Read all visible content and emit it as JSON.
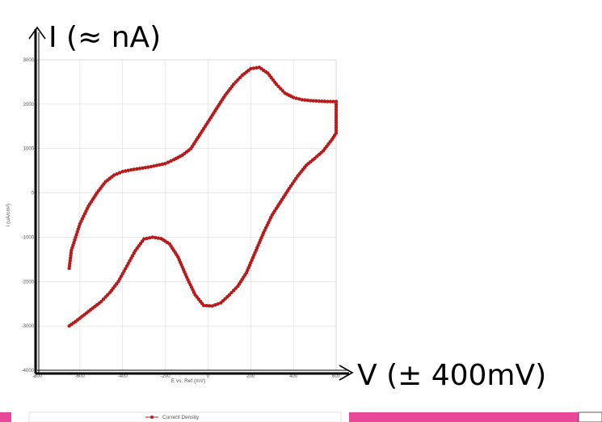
{
  "annotations": {
    "y_axis_label": "I (≈ nA)",
    "x_axis_label": "V (± 400mV)"
  },
  "colors": {
    "series": "#b71c1c",
    "pink_band": "#e8479a",
    "grid": "#dcdcdc"
  },
  "chart_data": {
    "type": "line",
    "title": "",
    "xlabel": "E vs. Ref (mV)",
    "ylabel": "i (uA/cm²)",
    "xlim": [
      -800,
      600
    ],
    "ylim": [
      -4000,
      3000
    ],
    "xticks": [
      "-800",
      "-600",
      "-400",
      "-200",
      "0",
      "200",
      "400",
      "600"
    ],
    "yticks": [
      "3000",
      "2000",
      "1000",
      "0",
      "-1000",
      "-2000",
      "-3000",
      "-4000"
    ],
    "grid": true,
    "legend": "bottom-center",
    "series": [
      {
        "name": "Current Density",
        "x": [
          -650,
          -640,
          -600,
          -560,
          -520,
          -480,
          -440,
          -400,
          -360,
          -320,
          -280,
          -240,
          -200,
          -160,
          -120,
          -80,
          -40,
          0,
          40,
          80,
          120,
          160,
          200,
          240,
          280,
          320,
          360,
          400,
          440,
          480,
          520,
          560,
          600,
          600,
          600,
          580,
          540,
          500,
          460,
          420,
          380,
          340,
          300,
          260,
          220,
          180,
          140,
          100,
          60,
          20,
          -20,
          -60,
          -100,
          -140,
          -180,
          -220,
          -260,
          -300,
          -340,
          -380,
          -420,
          -460,
          -500,
          -540,
          -580,
          -620,
          -650
        ],
        "y": [
          -1700,
          -1300,
          -700,
          -300,
          0,
          250,
          400,
          480,
          520,
          550,
          580,
          620,
          660,
          750,
          850,
          1000,
          1300,
          1600,
          1900,
          2200,
          2450,
          2650,
          2800,
          2830,
          2700,
          2450,
          2250,
          2150,
          2100,
          2080,
          2070,
          2060,
          2060,
          1700,
          1350,
          1200,
          950,
          780,
          620,
          380,
          100,
          -200,
          -500,
          -900,
          -1350,
          -1800,
          -2100,
          -2300,
          -2480,
          -2550,
          -2540,
          -2300,
          -1900,
          -1450,
          -1150,
          -1030,
          -1000,
          -1040,
          -1300,
          -1650,
          -2000,
          -2250,
          -2450,
          -2600,
          -2750,
          -2900,
          -3000
        ]
      }
    ]
  }
}
